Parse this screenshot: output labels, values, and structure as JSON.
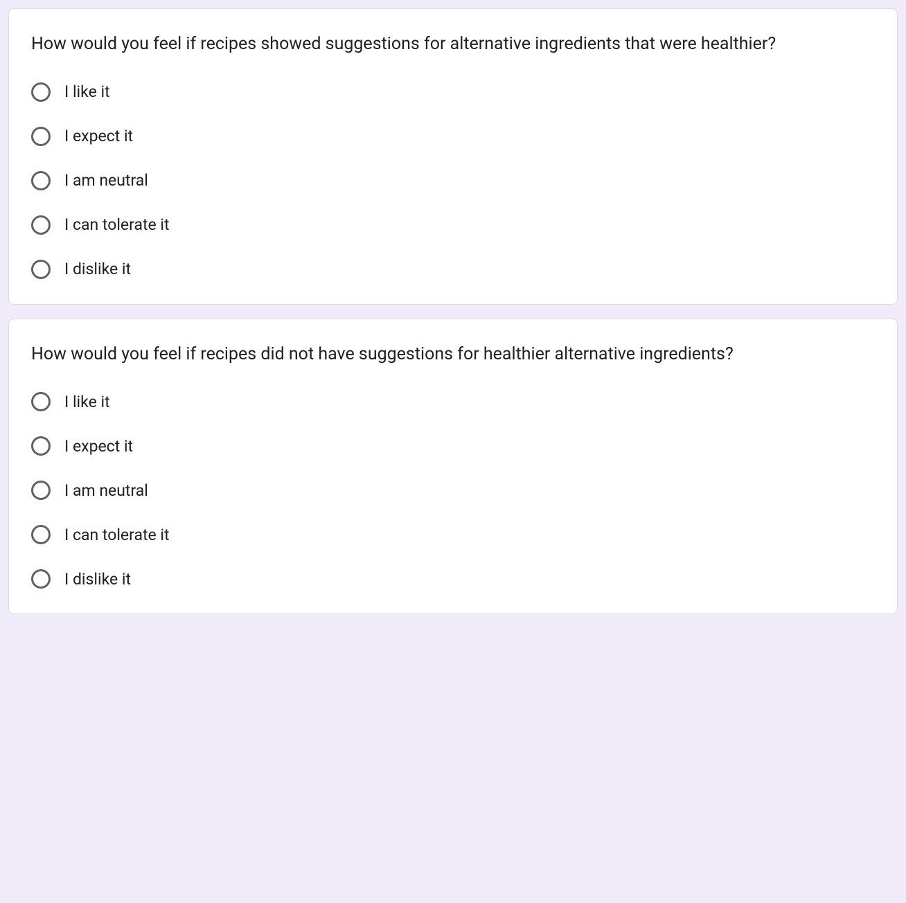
{
  "colors": {
    "page_background": "#f0ebf8",
    "card_background": "#ffffff",
    "card_border": "#dadce0",
    "text_primary": "#202124",
    "radio_border": "#5f6368"
  },
  "typography": {
    "font_family": "Roboto, Arial, sans-serif",
    "question_fontsize": 25,
    "option_fontsize": 23
  },
  "questions": [
    {
      "text": "How would you feel if recipes showed suggestions for alternative ingredients that were healthier?",
      "options": [
        "I like it",
        "I expect it",
        "I am neutral",
        "I can tolerate it",
        "I dislike it"
      ]
    },
    {
      "text": "How would you feel if recipes did not have suggestions for healthier alternative ingredients?",
      "options": [
        "I like it",
        "I expect it",
        "I am neutral",
        "I can tolerate it",
        "I dislike it"
      ]
    }
  ]
}
